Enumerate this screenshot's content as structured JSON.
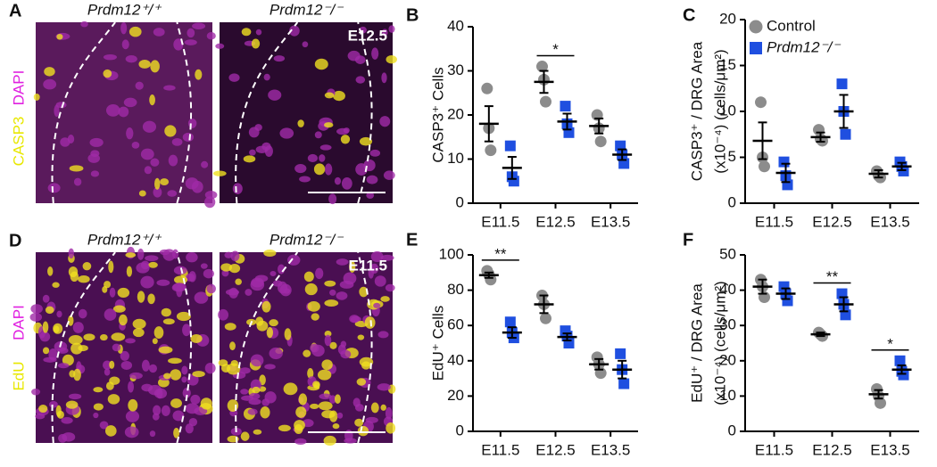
{
  "panels": [
    {
      "letter": "A",
      "row_label": [
        "DAPI",
        "CASP3"
      ],
      "images": [
        {
          "genotype": "Prdm12⁺/⁺"
        },
        {
          "genotype": "Prdm12⁻/⁻",
          "stage": "E12.5"
        }
      ]
    },
    {
      "letter": "D",
      "row_label": [
        "DAPI",
        "EdU"
      ],
      "images": [
        {
          "genotype": "Prdm12⁺/⁺"
        },
        {
          "genotype": "Prdm12⁻/⁻",
          "stage": "E11.5"
        }
      ]
    }
  ],
  "chart_data": [
    {
      "type": "dot",
      "panel": "B",
      "ylabel": [
        "CASP3⁺ Cells"
      ],
      "categories": [
        "E11.5",
        "E12.5",
        "E13.5"
      ],
      "ylim": [
        0,
        40
      ],
      "yticks": [
        0,
        10,
        20,
        30,
        40
      ],
      "series": [
        {
          "name": "Control",
          "color": "#8c8c8c",
          "marker": "circle",
          "points": [
            [
              26,
              17,
              12
            ],
            [
              31,
              28,
              23
            ],
            [
              20,
              17,
              14
            ]
          ],
          "mean": [
            18,
            27.5,
            17.5
          ],
          "sem": [
            4,
            2.5,
            1.7
          ]
        },
        {
          "name": "Prdm12⁻/⁻",
          "color": "#1f4fe0",
          "marker": "square",
          "points": [
            [
              13,
              6,
              5
            ],
            [
              22,
              18,
              16
            ],
            [
              13,
              11,
              9
            ]
          ],
          "mean": [
            8,
            18.5,
            11
          ],
          "sem": [
            2.5,
            1.8,
            1.2
          ]
        }
      ],
      "significance": [
        null,
        "*",
        null
      ]
    },
    {
      "type": "dot",
      "panel": "C",
      "ylabel": [
        "CASP3⁺ / DRG Area",
        "(x10⁻⁴) (cells/μm²)"
      ],
      "categories": [
        "E11.5",
        "E12.5",
        "E13.5"
      ],
      "ylim": [
        0,
        20
      ],
      "yticks": [
        0,
        5,
        10,
        15,
        20
      ],
      "series": [
        {
          "name": "Control",
          "color": "#8c8c8c",
          "marker": "circle",
          "points": [
            [
              11,
              5,
              4
            ],
            [
              8,
              7,
              6.8
            ],
            [
              3.5,
              3,
              2.8
            ]
          ],
          "mean": [
            6.8,
            7.2,
            3.2
          ],
          "sem": [
            2,
            0.5,
            0.4
          ]
        },
        {
          "name": "Prdm12⁻/⁻",
          "color": "#1f4fe0",
          "marker": "square",
          "points": [
            [
              4.5,
              3,
              2
            ],
            [
              13,
              10,
              7.5
            ],
            [
              4.5,
              4,
              3.5
            ]
          ],
          "mean": [
            3.3,
            10,
            4
          ],
          "sem": [
            1,
            1.8,
            0.4
          ]
        }
      ],
      "legend": "upper left",
      "significance": [
        null,
        null,
        null
      ]
    },
    {
      "type": "dot",
      "panel": "E",
      "ylabel": [
        "EdU⁺ Cells"
      ],
      "categories": [
        "E11.5",
        "E12.5",
        "E13.5"
      ],
      "ylim": [
        0,
        100
      ],
      "yticks": [
        0,
        20,
        40,
        60,
        80,
        100
      ],
      "series": [
        {
          "name": "Control",
          "color": "#8c8c8c",
          "marker": "circle",
          "points": [
            [
              91,
              89,
              86
            ],
            [
              77,
              72,
              64
            ],
            [
              42,
              38,
              33
            ]
          ],
          "mean": [
            88.5,
            72,
            38
          ],
          "sem": [
            1.5,
            5,
            3
          ]
        },
        {
          "name": "Prdm12⁻/⁻",
          "color": "#1f4fe0",
          "marker": "square",
          "points": [
            [
              62,
              56,
              53
            ],
            [
              57,
              54,
              50
            ],
            [
              44,
              35,
              27
            ]
          ],
          "mean": [
            56,
            53.5,
            35
          ],
          "sem": [
            3,
            2,
            5
          ]
        }
      ],
      "significance": [
        "**",
        null,
        null
      ]
    },
    {
      "type": "dot",
      "panel": "F",
      "ylabel": [
        "EdU⁺ / DRG Area",
        "(x10⁻⁴) (cells/μm²)"
      ],
      "categories": [
        "E11.5",
        "E12.5",
        "E13.5"
      ],
      "ylim": [
        0,
        50
      ],
      "yticks": [
        0,
        10,
        20,
        30,
        40,
        50
      ],
      "series": [
        {
          "name": "Control",
          "color": "#8c8c8c",
          "marker": "circle",
          "points": [
            [
              43,
              41,
              38
            ],
            [
              28,
              27.5,
              27
            ],
            [
              12,
              10,
              8
            ]
          ],
          "mean": [
            41,
            27.5,
            10.5
          ],
          "sem": [
            2,
            0.5,
            1.2
          ]
        },
        {
          "name": "Prdm12⁻/⁻",
          "color": "#1f4fe0",
          "marker": "square",
          "points": [
            [
              41,
              39,
              37
            ],
            [
              39,
              36,
              33
            ],
            [
              20,
              17,
              16
            ]
          ],
          "mean": [
            39,
            36,
            17.5
          ],
          "sem": [
            1.5,
            2,
            1.2
          ]
        }
      ],
      "significance": [
        null,
        "**",
        "*"
      ]
    }
  ]
}
